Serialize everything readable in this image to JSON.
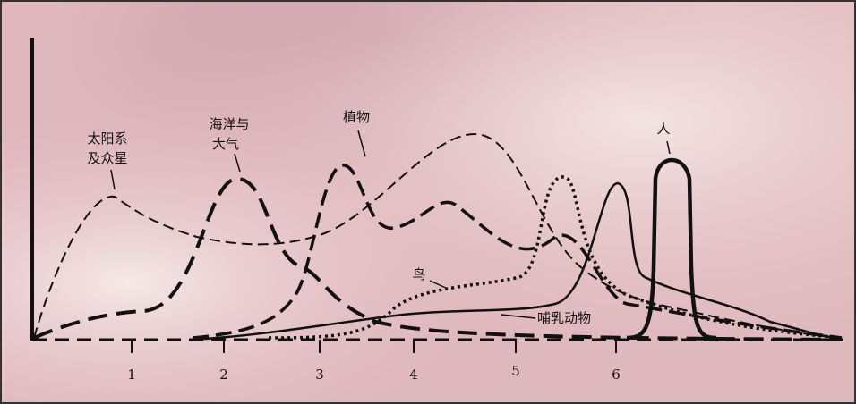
{
  "labels": {
    "solar_system": [
      "太阳系",
      "及众星"
    ],
    "ocean_atmosphere": [
      "海洋与",
      "大气"
    ],
    "plants": "植物",
    "humans": "人",
    "birds": "鸟",
    "mammals": "哺乳动物"
  },
  "axis_ticks": [
    "1",
    "2",
    "3",
    "4",
    "5",
    "6"
  ]
}
